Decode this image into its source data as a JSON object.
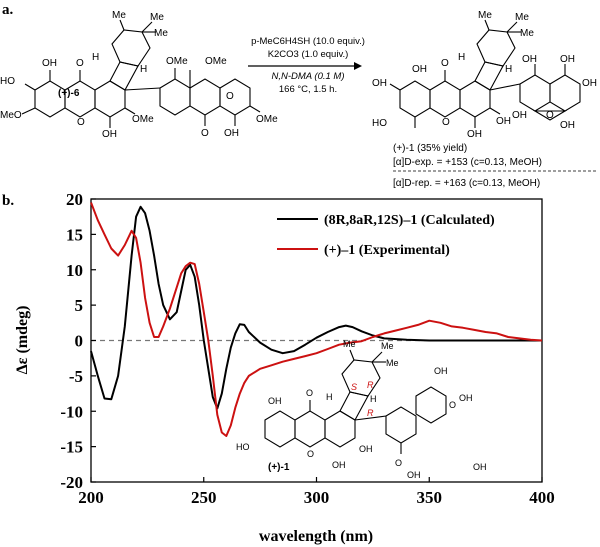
{
  "panel_a": {
    "label": "a.",
    "reactant_id": "(+)-6",
    "reagent_line1": "p-MeC6H4SH (10.0 equiv.)",
    "reagent_line2": "K2CO3 (1.0 equiv.)",
    "condition_line1": "N,N-DMA (0.1 M)",
    "condition_line2": "166 °C, 1.5 h.",
    "product_result": "(+)-1 (35% yield)",
    "rotation_exp": "[α]D-exp. = +153 (c=0.13, MeOH)",
    "rotation_rep": "[α]D-rep. = +163 (c=0.13, MeOH)"
  },
  "panel_b": {
    "label": "b.",
    "inset_compound_id": "(+)-1"
  },
  "chart_data": {
    "type": "line",
    "xlabel": "wavelength (nm)",
    "ylabel": "Δε (mdeg)",
    "xlim": [
      200,
      400
    ],
    "ylim": [
      -20,
      20
    ],
    "xticks": [
      200,
      250,
      300,
      350,
      400
    ],
    "yticks": [
      -20,
      -15,
      -10,
      -5,
      0,
      5,
      10,
      15,
      20
    ],
    "zero_line": "dashed",
    "legend_position": "top-right",
    "series": [
      {
        "name": "(8R,8aR,12S)–1 (Calculated)",
        "color": "#000000",
        "x": [
          200,
          203,
          206,
          209,
          212,
          215,
          218,
          220,
          222,
          224,
          226,
          228,
          230,
          232,
          235,
          238,
          240,
          242,
          244,
          246,
          248,
          250,
          252,
          254,
          256,
          258,
          260,
          262,
          264,
          266,
          268,
          270,
          275,
          280,
          285,
          290,
          295,
          300,
          305,
          310,
          313,
          316,
          320,
          325,
          330,
          340,
          350,
          360,
          370,
          380,
          390,
          400
        ],
        "y": [
          -1.5,
          -5,
          -8.2,
          -8.3,
          -5,
          2,
          12,
          17.5,
          18.9,
          18,
          15.5,
          12,
          8,
          5,
          3,
          4,
          7,
          10,
          10.7,
          9,
          5,
          0,
          -4,
          -8,
          -9.6,
          -7.5,
          -4,
          -1,
          1,
          2.3,
          2.2,
          1.2,
          -0.3,
          -1.3,
          -1.8,
          -1.5,
          -0.6,
          0.4,
          1.2,
          1.9,
          2.1,
          1.9,
          1.3,
          0.7,
          0.3,
          0.1,
          0,
          0,
          0,
          0,
          0,
          0
        ]
      },
      {
        "name": "(+)–1 (Experimental)",
        "color": "#cc1111",
        "x": [
          200,
          203,
          206,
          209,
          212,
          215,
          218,
          220,
          222,
          224,
          226,
          228,
          230,
          232,
          235,
          238,
          240,
          242,
          244,
          246,
          248,
          250,
          252,
          254,
          256,
          258,
          260,
          262,
          264,
          266,
          268,
          270,
          275,
          280,
          285,
          290,
          295,
          300,
          305,
          310,
          315,
          320,
          325,
          330,
          335,
          340,
          345,
          350,
          355,
          360,
          365,
          370,
          375,
          380,
          385,
          390,
          395,
          400
        ],
        "y": [
          19.5,
          17,
          15,
          13,
          12,
          13.5,
          15.5,
          14.5,
          11,
          6,
          2.5,
          0.5,
          0.5,
          2,
          4.5,
          7.5,
          9.5,
          10.5,
          11,
          10.8,
          8,
          4,
          0,
          -5,
          -10.5,
          -13,
          -13.5,
          -12,
          -9.5,
          -7.5,
          -6,
          -5,
          -4,
          -3.5,
          -3,
          -2.6,
          -2.2,
          -1.8,
          -1.2,
          -0.6,
          -0.3,
          -0.1,
          0.5,
          1,
          1.4,
          1.8,
          2.2,
          2.8,
          2.5,
          2,
          1.8,
          1.5,
          1.2,
          1,
          0.5,
          0.3,
          0.1,
          0
        ]
      }
    ]
  }
}
